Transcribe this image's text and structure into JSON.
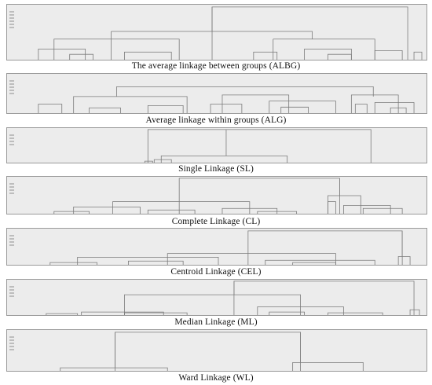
{
  "captions": {
    "albg": "The average linkage between groups (ALBG)",
    "alg": "Average linkage within groups (ALG)",
    "sl": "Single Linkage (SL)",
    "cl": "Complete Linkage (CL)",
    "cel": "Centroid Linkage (CEL)",
    "ml": "Median Linkage (ML)",
    "wl": "Ward Linkage (WL)"
  },
  "colors": {
    "panel_bg": "#ececec",
    "line": "#7a7a7a",
    "border": "#9a9a9a"
  }
}
